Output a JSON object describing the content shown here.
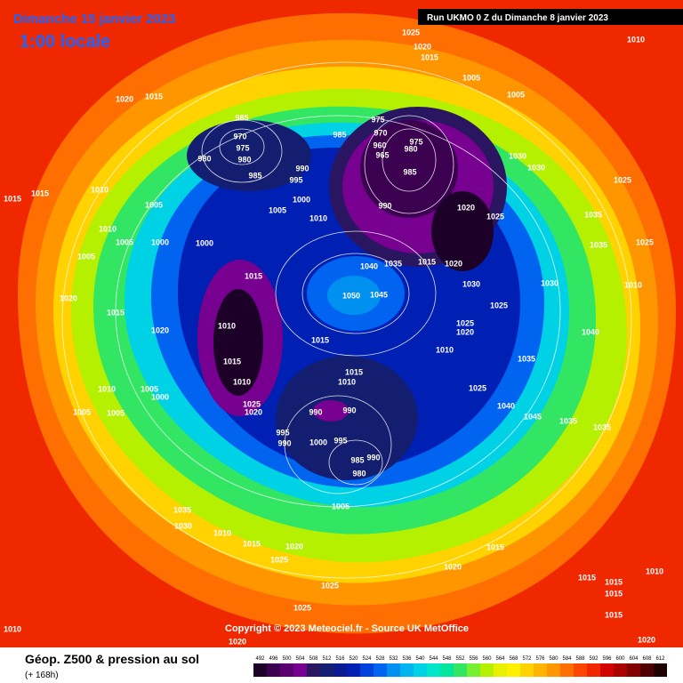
{
  "header": {
    "date": "Dimanche 15 janvier 2023",
    "time": "1:00 locale",
    "run": "Run UKMO 0 Z du Dimanche 8 janvier 2023"
  },
  "isobar_labels": [
    1025,
    1020,
    1015,
    1010,
    1005,
    1005,
    1015,
    1020,
    985,
    975,
    970,
    970,
    960,
    975,
    975,
    965,
    980,
    985,
    980,
    980,
    990,
    995,
    985,
    985,
    1030,
    1030,
    1025,
    1015,
    1015,
    1010,
    1005,
    1000,
    990,
    1020,
    1025,
    1005,
    1010,
    1035,
    1010,
    1005,
    1000,
    1000,
    1035,
    1025,
    1005,
    1040,
    1035,
    1015,
    1020,
    1015,
    1030,
    1030,
    1010,
    1050,
    1045,
    1020,
    1015,
    1025,
    1025,
    1020,
    1010,
    1020,
    1015,
    1040,
    1010,
    1015,
    1035,
    1015,
    1010,
    1010,
    1010,
    1005,
    1000,
    1025,
    1025,
    1020,
    990,
    990,
    1040,
    1045,
    1035,
    1035,
    1005,
    1005,
    995,
    990,
    1000,
    995,
    985,
    990,
    980,
    1005,
    1035,
    1030,
    1010,
    1015,
    1020,
    1015,
    1025,
    1020,
    1025,
    1015,
    1015,
    1015,
    1010,
    1025,
    1015,
    1020,
    1020,
    1010
  ],
  "copyright": "Copyright © 2023 Meteociel.fr - Source UK MetOffice",
  "legend": {
    "title": "Géop. Z500 & pression au sol",
    "lead": "(+ 168h)",
    "scale": [
      492,
      496,
      500,
      504,
      508,
      512,
      516,
      520,
      524,
      528,
      532,
      536,
      540,
      544,
      548,
      552,
      556,
      560,
      564,
      568,
      572,
      576,
      580,
      584,
      588,
      592,
      596,
      600,
      604,
      608,
      612
    ],
    "colors": [
      "#1c0028",
      "#3c0050",
      "#5a0070",
      "#780090",
      "#2a1560",
      "#141e70",
      "#0a1a90",
      "#0020b4",
      "#0040dc",
      "#0064f0",
      "#0090f0",
      "#00b4f0",
      "#00d2e6",
      "#00e6c8",
      "#00e69c",
      "#32e664",
      "#78f032",
      "#b4f000",
      "#e6f000",
      "#fff000",
      "#ffd200",
      "#ffb400",
      "#ff9600",
      "#ff6e00",
      "#ff4600",
      "#f02800",
      "#d20000",
      "#aa0000",
      "#820000",
      "#500000",
      "#1e0000"
    ]
  }
}
